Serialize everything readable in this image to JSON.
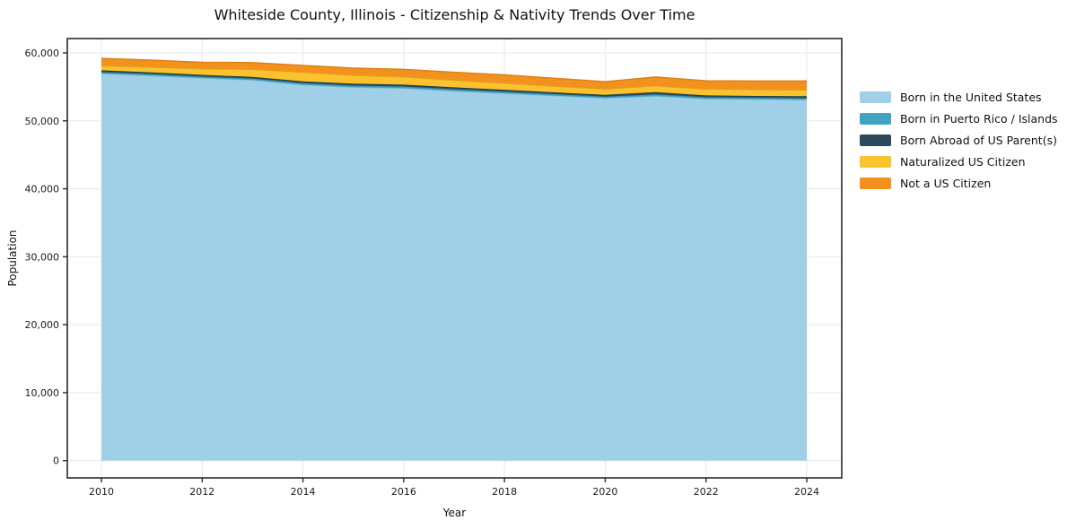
{
  "title": "Whiteside County, Illinois - Citizenship & Nativity Trends Over Time",
  "chart_data": {
    "type": "area",
    "stacked": true,
    "title": "Whiteside County, Illinois - Citizenship & Nativity Trends Over Time",
    "xlabel": "Year",
    "ylabel": "Population",
    "x": [
      2010,
      2011,
      2012,
      2013,
      2014,
      2015,
      2016,
      2017,
      2018,
      2019,
      2020,
      2021,
      2022,
      2023,
      2024
    ],
    "series": [
      {
        "name": "Born in the United States",
        "color": "#9FD0E8",
        "edge": "#86b9d4",
        "values": [
          56950,
          56650,
          56300,
          56000,
          55300,
          54950,
          54800,
          54400,
          54050,
          53700,
          53350,
          53650,
          53250,
          53180,
          53100
        ]
      },
      {
        "name": "Born in Puerto Rico / Islands",
        "color": "#41A3C2",
        "edge": "#3690ad",
        "values": [
          230,
          230,
          220,
          220,
          240,
          240,
          250,
          250,
          250,
          230,
          220,
          260,
          230,
          230,
          240
        ]
      },
      {
        "name": "Born Abroad of US Parent(s)",
        "color": "#2A4A5C",
        "edge": "#1f3a49",
        "values": [
          260,
          255,
          250,
          250,
          280,
          280,
          280,
          280,
          280,
          260,
          255,
          310,
          260,
          260,
          290
        ]
      },
      {
        "name": "Naturalized US Citizen",
        "color": "#F9C22E",
        "edge": "#e0ab1b",
        "values": [
          660,
          770,
          885,
          1100,
          1320,
          1230,
          1140,
          1050,
          965,
          900,
          845,
          925,
          925,
          925,
          925
        ]
      },
      {
        "name": "Not a US Citizen",
        "color": "#F2921E",
        "edge": "#dd7f10",
        "values": [
          1100,
          1030,
          970,
          1000,
          1020,
          1060,
          1110,
          1170,
          1240,
          1170,
          1100,
          1320,
          1230,
          1270,
          1320
        ]
      }
    ],
    "ylim": [
      0,
      60000
    ],
    "yticks": [
      0,
      10000,
      20000,
      30000,
      40000,
      50000,
      60000
    ],
    "ytick_labels": [
      "0",
      "10,000",
      "20,000",
      "30,000",
      "40,000",
      "50,000",
      "60,000"
    ],
    "xticks": [
      2010,
      2012,
      2014,
      2016,
      2018,
      2020,
      2022,
      2024
    ],
    "grid": true,
    "grid_color": "#e8e8e8",
    "spine_color": "#2a2a2a",
    "tick_label_color": "#1a1a1a",
    "legend_position": "right"
  }
}
